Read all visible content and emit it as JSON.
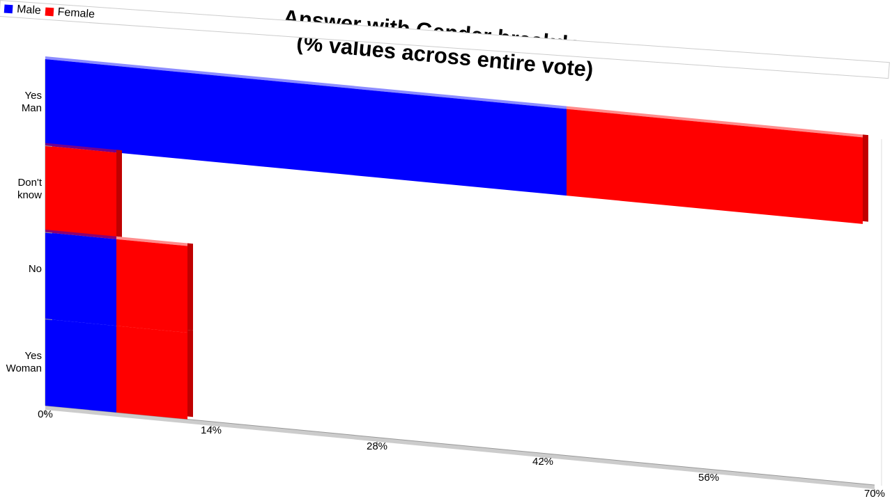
{
  "chart_data": {
    "type": "bar",
    "orientation": "horizontal",
    "stacked": true,
    "title": "Answer with Gender breakdown\n(% values across entire vote)",
    "categories": [
      "Yes\nMan",
      "Don't\nknow",
      "No",
      "Yes\nWoman"
    ],
    "series": [
      {
        "name": "Male",
        "color": "#0000ff",
        "values": [
          44,
          0,
          6,
          6
        ]
      },
      {
        "name": "Female",
        "color": "#ff0000",
        "values": [
          25,
          6,
          6,
          6
        ]
      }
    ],
    "xlim": [
      0,
      70
    ],
    "xticks": [
      {
        "value": 0,
        "label": "0%"
      },
      {
        "value": 14,
        "label": "14%"
      },
      {
        "value": 28,
        "label": "28%"
      },
      {
        "value": 42,
        "label": "42%"
      },
      {
        "value": 56,
        "label": "56%"
      },
      {
        "value": 70,
        "label": "70%"
      }
    ],
    "legend": "top-right"
  }
}
